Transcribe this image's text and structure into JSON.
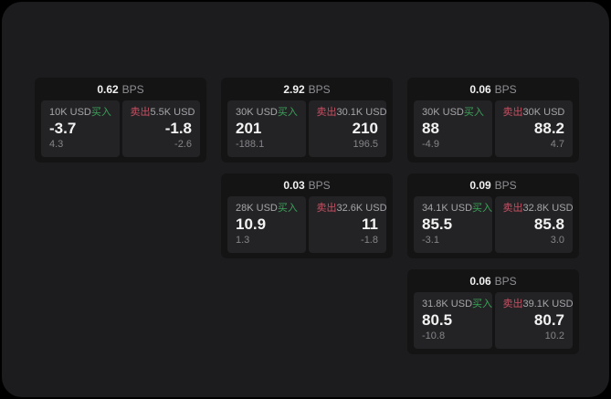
{
  "labels": {
    "bps": "BPS",
    "buy": "买入",
    "sell": "卖出"
  },
  "colors": {
    "window_bg": "#1c1c1e",
    "card_bg": "#141415",
    "panel_bg": "#232325",
    "buy_green": "#3ba258",
    "sell_red": "#c75063"
  },
  "cards": [
    {
      "bps": "0.62",
      "buy": {
        "amount": "10K USD",
        "value": "-3.7",
        "sub": "4.3"
      },
      "sell": {
        "amount": "5.5K USD",
        "value": "-1.8",
        "sub": "-2.6"
      }
    },
    {
      "bps": "2.92",
      "buy": {
        "amount": "30K USD",
        "value": "201",
        "sub": "-188.1"
      },
      "sell": {
        "amount": "30.1K USD",
        "value": "210",
        "sub": "196.5"
      }
    },
    {
      "bps": "0.06",
      "buy": {
        "amount": "30K USD",
        "value": "88",
        "sub": "-4.9"
      },
      "sell": {
        "amount": "30K USD",
        "value": "88.2",
        "sub": "4.7"
      }
    },
    {
      "bps": "0.03",
      "buy": {
        "amount": "28K USD",
        "value": "10.9",
        "sub": "1.3"
      },
      "sell": {
        "amount": "32.6K USD",
        "value": "11",
        "sub": "-1.8"
      }
    },
    {
      "bps": "0.09",
      "buy": {
        "amount": "34.1K USD",
        "value": "85.5",
        "sub": "-3.1"
      },
      "sell": {
        "amount": "32.8K USD",
        "value": "85.8",
        "sub": "3.0"
      }
    },
    {
      "bps": "0.06",
      "buy": {
        "amount": "31.8K USD",
        "value": "80.5",
        "sub": "-10.8"
      },
      "sell": {
        "amount": "39.1K USD",
        "value": "80.7",
        "sub": "10.2"
      }
    }
  ]
}
